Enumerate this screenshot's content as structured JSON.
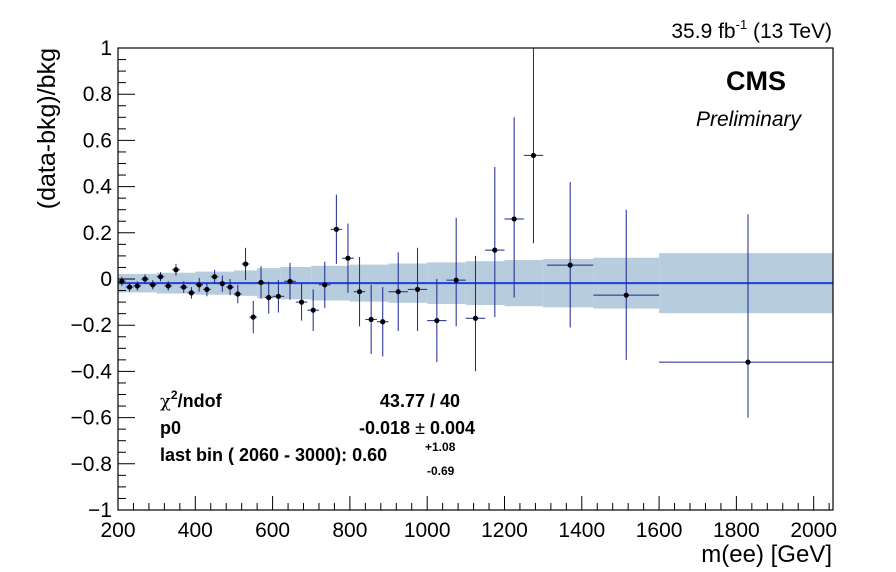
{
  "header": {
    "lumi_prefix": "35.9 fb",
    "lumi_exponent": "-1",
    "lumi_suffix": " (13 TeV)"
  },
  "labels": {
    "experiment": "CMS",
    "status": "Preliminary"
  },
  "fit_box": {
    "chi2_symbol": "χ",
    "chi2_exponent": "2",
    "chi2_label": "/ndof",
    "chi2_value": "43.77 / 40",
    "p0_label": "p0",
    "p0_value": "-0.018",
    "p0_pm": "±",
    "p0_error": "0.004",
    "lastbin_label": "last bin ( 2060 - 3000):",
    "lastbin_value": "0.60",
    "lastbin_up": "+1.08",
    "lastbin_down": "-0.69"
  },
  "colors": {
    "band": "#b7ccdd",
    "fit_line": "#1f3fe0",
    "error_bar": "#1a2690",
    "marker": "#000000"
  },
  "chart_data": {
    "type": "scatter",
    "xlabel": "m(ee) [GeV]",
    "ylabel": "(data-bkg)/bkg",
    "xlim": [
      200,
      2050
    ],
    "ylim": [
      -1,
      1
    ],
    "x_ticks": [
      200,
      400,
      600,
      800,
      1000,
      1200,
      1400,
      1600,
      1800,
      2000
    ],
    "y_ticks": [
      -1,
      -0.8,
      -0.6,
      -0.4,
      -0.2,
      0,
      0.2,
      0.4,
      0.6,
      0.8,
      1
    ],
    "x_tick_labels": [
      "200",
      "400",
      "600",
      "800",
      "1000",
      "1200",
      "1400",
      "1600",
      "1800",
      "2000"
    ],
    "y_tick_labels": [
      "−1",
      "−0.8",
      "−0.6",
      "−0.4",
      "−0.2",
      "0",
      "0.2",
      "0.4",
      "0.6",
      "0.8",
      "1"
    ],
    "fit": {
      "p0": -0.018
    },
    "uncertainty_band": [
      {
        "x0": 200,
        "x1": 300,
        "half": 0.04
      },
      {
        "x0": 300,
        "x1": 400,
        "half": 0.045
      },
      {
        "x0": 400,
        "x1": 500,
        "half": 0.05
      },
      {
        "x0": 500,
        "x1": 560,
        "half": 0.055
      },
      {
        "x0": 560,
        "x1": 620,
        "half": 0.065
      },
      {
        "x0": 620,
        "x1": 700,
        "half": 0.07
      },
      {
        "x0": 700,
        "x1": 800,
        "half": 0.075
      },
      {
        "x0": 800,
        "x1": 900,
        "half": 0.08
      },
      {
        "x0": 900,
        "x1": 1000,
        "half": 0.085
      },
      {
        "x0": 1000,
        "x1": 1100,
        "half": 0.09
      },
      {
        "x0": 1100,
        "x1": 1200,
        "half": 0.095
      },
      {
        "x0": 1200,
        "x1": 1300,
        "half": 0.1
      },
      {
        "x0": 1300,
        "x1": 1430,
        "half": 0.105
      },
      {
        "x0": 1430,
        "x1": 1600,
        "half": 0.11
      },
      {
        "x0": 1600,
        "x1": 2050,
        "half": 0.13
      }
    ],
    "points": [
      {
        "x": 210,
        "y": -0.01,
        "err_up": 0.02,
        "err_dn": 0.02,
        "xlo": 200,
        "xhi": 220
      },
      {
        "x": 230,
        "y": -0.035,
        "err_up": 0.02,
        "err_dn": 0.02,
        "xlo": 220,
        "xhi": 240
      },
      {
        "x": 250,
        "y": -0.03,
        "err_up": 0.02,
        "err_dn": 0.02,
        "xlo": 240,
        "xhi": 260
      },
      {
        "x": 270,
        "y": 0.0,
        "err_up": 0.02,
        "err_dn": 0.02,
        "xlo": 260,
        "xhi": 280
      },
      {
        "x": 290,
        "y": -0.025,
        "err_up": 0.02,
        "err_dn": 0.02,
        "xlo": 280,
        "xhi": 300
      },
      {
        "x": 310,
        "y": 0.01,
        "err_up": 0.02,
        "err_dn": 0.02,
        "xlo": 300,
        "xhi": 320
      },
      {
        "x": 330,
        "y": -0.03,
        "err_up": 0.02,
        "err_dn": 0.02,
        "xlo": 320,
        "xhi": 340
      },
      {
        "x": 350,
        "y": 0.04,
        "err_up": 0.025,
        "err_dn": 0.025,
        "xlo": 340,
        "xhi": 360
      },
      {
        "x": 370,
        "y": -0.035,
        "err_up": 0.025,
        "err_dn": 0.025,
        "xlo": 360,
        "xhi": 380
      },
      {
        "x": 390,
        "y": -0.06,
        "err_up": 0.025,
        "err_dn": 0.025,
        "xlo": 380,
        "xhi": 400
      },
      {
        "x": 410,
        "y": -0.025,
        "err_up": 0.03,
        "err_dn": 0.03,
        "xlo": 400,
        "xhi": 420
      },
      {
        "x": 430,
        "y": -0.045,
        "err_up": 0.03,
        "err_dn": 0.03,
        "xlo": 420,
        "xhi": 440
      },
      {
        "x": 450,
        "y": 0.01,
        "err_up": 0.03,
        "err_dn": 0.03,
        "xlo": 440,
        "xhi": 460
      },
      {
        "x": 470,
        "y": -0.02,
        "err_up": 0.035,
        "err_dn": 0.035,
        "xlo": 460,
        "xhi": 480
      },
      {
        "x": 490,
        "y": -0.035,
        "err_up": 0.035,
        "err_dn": 0.035,
        "xlo": 480,
        "xhi": 500
      },
      {
        "x": 510,
        "y": -0.065,
        "err_up": 0.04,
        "err_dn": 0.04,
        "xlo": 500,
        "xhi": 520
      },
      {
        "x": 530,
        "y": 0.065,
        "err_up": 0.07,
        "err_dn": 0.07,
        "xlo": 520,
        "xhi": 540
      },
      {
        "x": 550,
        "y": -0.165,
        "err_up": 0.07,
        "err_dn": 0.07,
        "xlo": 540,
        "xhi": 560
      },
      {
        "x": 570,
        "y": -0.015,
        "err_up": 0.07,
        "err_dn": 0.07,
        "xlo": 560,
        "xhi": 580
      },
      {
        "x": 590,
        "y": -0.08,
        "err_up": 0.07,
        "err_dn": 0.07,
        "xlo": 580,
        "xhi": 600
      },
      {
        "x": 615,
        "y": -0.075,
        "err_up": 0.07,
        "err_dn": 0.07,
        "xlo": 600,
        "xhi": 630
      },
      {
        "x": 645,
        "y": -0.01,
        "err_up": 0.08,
        "err_dn": 0.08,
        "xlo": 630,
        "xhi": 660
      },
      {
        "x": 675,
        "y": -0.1,
        "err_up": 0.08,
        "err_dn": 0.08,
        "xlo": 660,
        "xhi": 690
      },
      {
        "x": 705,
        "y": -0.135,
        "err_up": 0.09,
        "err_dn": 0.09,
        "xlo": 690,
        "xhi": 720
      },
      {
        "x": 735,
        "y": -0.025,
        "err_up": 0.1,
        "err_dn": 0.1,
        "xlo": 720,
        "xhi": 750
      },
      {
        "x": 765,
        "y": 0.215,
        "err_up": 0.15,
        "err_dn": 0.15,
        "xlo": 750,
        "xhi": 780
      },
      {
        "x": 795,
        "y": 0.09,
        "err_up": 0.15,
        "err_dn": 0.15,
        "xlo": 780,
        "xhi": 810
      },
      {
        "x": 825,
        "y": -0.055,
        "err_up": 0.15,
        "err_dn": 0.15,
        "xlo": 810,
        "xhi": 840
      },
      {
        "x": 855,
        "y": -0.175,
        "err_up": 0.15,
        "err_dn": 0.15,
        "xlo": 840,
        "xhi": 870
      },
      {
        "x": 885,
        "y": -0.185,
        "err_up": 0.15,
        "err_dn": 0.15,
        "xlo": 870,
        "xhi": 900
      },
      {
        "x": 925,
        "y": -0.055,
        "err_up": 0.17,
        "err_dn": 0.17,
        "xlo": 900,
        "xhi": 950
      },
      {
        "x": 975,
        "y": -0.045,
        "err_up": 0.18,
        "err_dn": 0.18,
        "xlo": 950,
        "xhi": 1000
      },
      {
        "x": 1025,
        "y": -0.18,
        "err_up": 0.18,
        "err_dn": 0.18,
        "xlo": 1000,
        "xhi": 1050
      },
      {
        "x": 1075,
        "y": -0.005,
        "err_up": 0.27,
        "err_dn": 0.2,
        "xlo": 1050,
        "xhi": 1100
      },
      {
        "x": 1125,
        "y": -0.17,
        "err_up": 0.27,
        "err_dn": 0.23,
        "xlo": 1100,
        "xhi": 1150
      },
      {
        "x": 1175,
        "y": 0.125,
        "err_up": 0.36,
        "err_dn": 0.29,
        "xlo": 1150,
        "xhi": 1200
      },
      {
        "x": 1225,
        "y": 0.26,
        "err_up": 0.44,
        "err_dn": 0.34,
        "xlo": 1200,
        "xhi": 1250
      },
      {
        "x": 1275,
        "y": 0.535,
        "err_up": 0.55,
        "err_dn": 0.38,
        "xlo": 1250,
        "xhi": 1300
      },
      {
        "x": 1370,
        "y": 0.06,
        "err_up": 0.36,
        "err_dn": 0.27,
        "xlo": 1310,
        "xhi": 1430
      },
      {
        "x": 1515,
        "y": -0.07,
        "err_up": 0.37,
        "err_dn": 0.28,
        "xlo": 1430,
        "xhi": 1600
      },
      {
        "x": 1830,
        "y": -0.36,
        "err_up": 0.64,
        "err_dn": 0.24,
        "xlo": 1600,
        "xhi": 2050
      }
    ]
  }
}
